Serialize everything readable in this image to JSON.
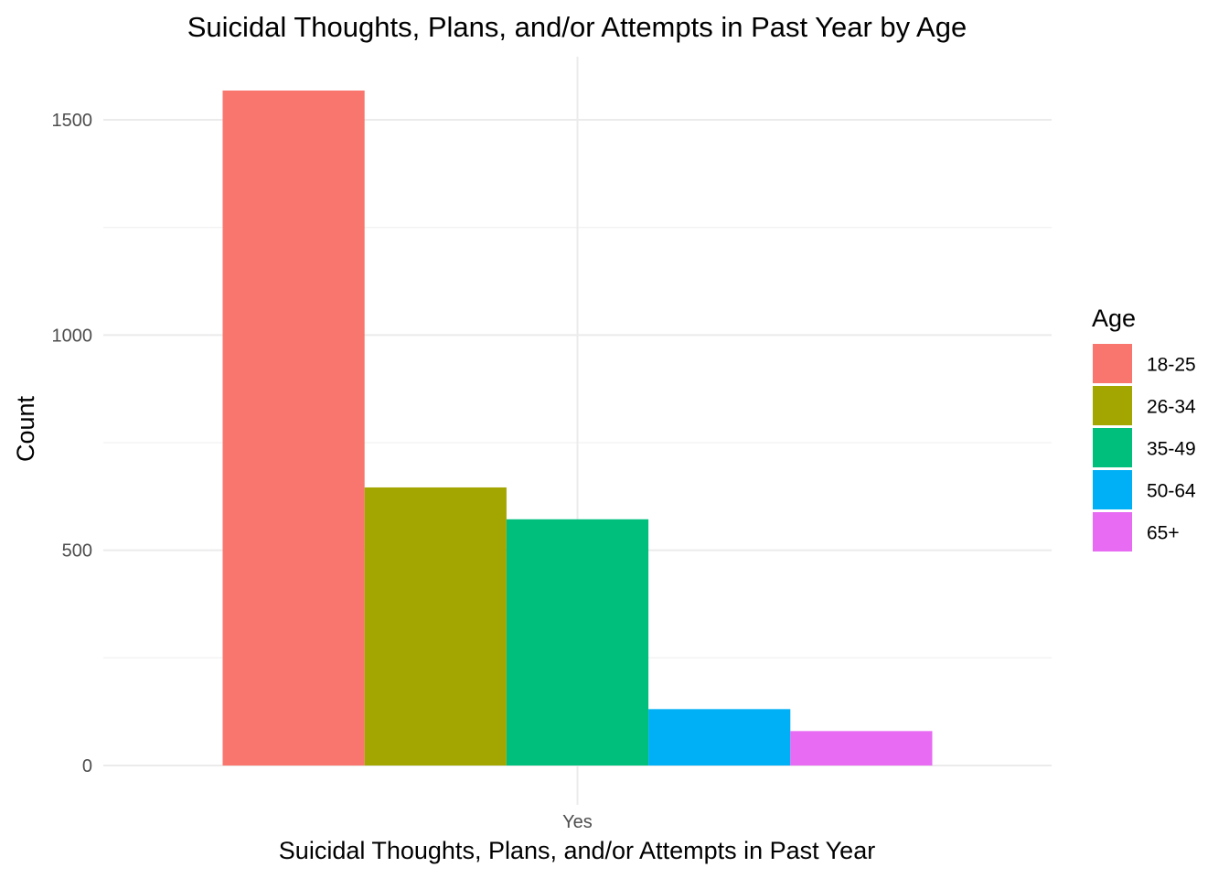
{
  "chart_data": {
    "type": "bar",
    "title": "Suicidal Thoughts, Plans, and/or Attempts in Past Year by Age",
    "xlabel": "Suicidal Thoughts, Plans, and/or Attempts in Past Year",
    "ylabel": "Count",
    "categories": [
      "Yes"
    ],
    "series": [
      {
        "name": "18-25",
        "values": [
          1568
        ],
        "color": "#F8766D"
      },
      {
        "name": "26-34",
        "values": [
          646
        ],
        "color": "#A3A500"
      },
      {
        "name": "35-49",
        "values": [
          572
        ],
        "color": "#00BF7D"
      },
      {
        "name": "50-64",
        "values": [
          131
        ],
        "color": "#00B0F6"
      },
      {
        "name": "65+",
        "values": [
          80
        ],
        "color": "#E76BF3"
      }
    ],
    "ylim": [
      0,
      1600
    ],
    "y_ticks": [
      0,
      500,
      1000,
      1500
    ],
    "legend": {
      "title": "Age",
      "position": "right"
    },
    "grid": true
  }
}
